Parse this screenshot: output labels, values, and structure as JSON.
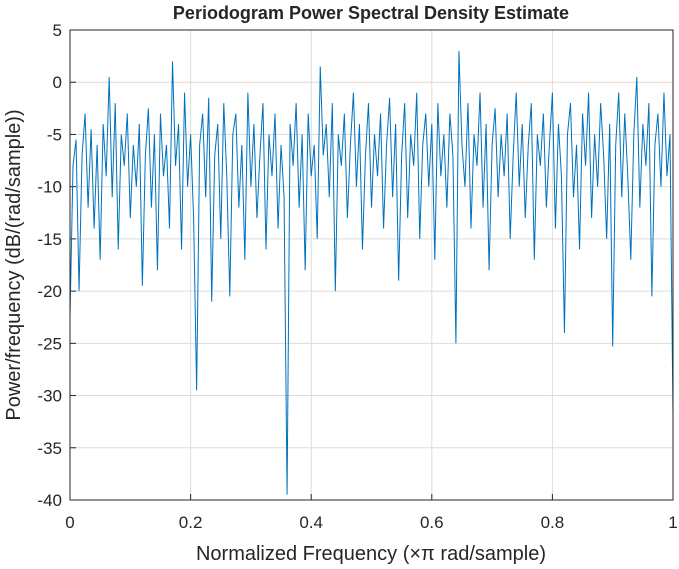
{
  "chart_data": {
    "type": "line",
    "title": "Periodogram Power Spectral Density Estimate",
    "x_label": "Normalized Frequency  (×π rad/sample)",
    "y_label": "Power/frequency (dB/(rad/sample))",
    "xlim": [
      0,
      1
    ],
    "ylim": [
      -40,
      5
    ],
    "xticks": [
      0,
      0.2,
      0.4,
      0.6,
      0.8,
      1
    ],
    "yticks": [
      -40,
      -35,
      -30,
      -25,
      -20,
      -15,
      -10,
      -5,
      0,
      5
    ],
    "grid": true,
    "x": [
      0,
      0.005,
      0.01,
      0.015,
      0.02,
      0.025,
      0.03,
      0.035,
      0.04,
      0.045,
      0.05,
      0.055,
      0.06,
      0.065,
      0.07,
      0.075,
      0.08,
      0.085,
      0.09,
      0.095,
      0.1,
      0.105,
      0.11,
      0.115,
      0.12,
      0.125,
      0.13,
      0.135,
      0.14,
      0.145,
      0.15,
      0.155,
      0.16,
      0.165,
      0.17,
      0.175,
      0.18,
      0.185,
      0.19,
      0.195,
      0.2,
      0.205,
      0.21,
      0.215,
      0.22,
      0.225,
      0.23,
      0.235,
      0.24,
      0.245,
      0.25,
      0.255,
      0.26,
      0.265,
      0.27,
      0.275,
      0.28,
      0.285,
      0.29,
      0.295,
      0.3,
      0.305,
      0.31,
      0.315,
      0.32,
      0.325,
      0.33,
      0.335,
      0.34,
      0.345,
      0.35,
      0.355,
      0.36,
      0.365,
      0.37,
      0.375,
      0.38,
      0.385,
      0.39,
      0.395,
      0.4,
      0.405,
      0.41,
      0.415,
      0.42,
      0.425,
      0.43,
      0.435,
      0.44,
      0.445,
      0.45,
      0.455,
      0.46,
      0.465,
      0.47,
      0.475,
      0.48,
      0.485,
      0.49,
      0.495,
      0.5,
      0.505,
      0.51,
      0.515,
      0.52,
      0.525,
      0.53,
      0.535,
      0.54,
      0.545,
      0.55,
      0.555,
      0.56,
      0.565,
      0.57,
      0.575,
      0.58,
      0.585,
      0.59,
      0.595,
      0.6,
      0.605,
      0.61,
      0.615,
      0.62,
      0.625,
      0.63,
      0.635,
      0.64,
      0.645,
      0.65,
      0.655,
      0.66,
      0.665,
      0.67,
      0.675,
      0.68,
      0.685,
      0.69,
      0.695,
      0.7,
      0.705,
      0.71,
      0.715,
      0.72,
      0.725,
      0.73,
      0.735,
      0.74,
      0.745,
      0.75,
      0.755,
      0.76,
      0.765,
      0.77,
      0.775,
      0.78,
      0.785,
      0.79,
      0.795,
      0.8,
      0.805,
      0.81,
      0.815,
      0.82,
      0.825,
      0.83,
      0.835,
      0.84,
      0.845,
      0.85,
      0.855,
      0.86,
      0.865,
      0.87,
      0.875,
      0.88,
      0.885,
      0.89,
      0.895,
      0.9,
      0.905,
      0.91,
      0.915,
      0.92,
      0.925,
      0.93,
      0.935,
      0.94,
      0.945,
      0.95,
      0.955,
      0.96,
      0.965,
      0.97,
      0.975,
      0.98,
      0.985,
      0.99,
      0.995,
      1
    ],
    "series": [
      {
        "color": "#0072bd",
        "values": [
          -22.5,
          -8,
          -5.5,
          -20,
          -7,
          -3,
          -12,
          -4.5,
          -14,
          -6,
          -17,
          -4,
          -9,
          0.5,
          -11,
          -2,
          -16,
          -5,
          -8,
          -3,
          -13,
          -6,
          -10,
          -4,
          -19.5,
          -7,
          -2.5,
          -12,
          -5,
          -18,
          -3,
          -9,
          -6,
          -14,
          2,
          -8,
          -4,
          -16,
          -1,
          -10,
          -5,
          -13,
          -29.5,
          -6,
          -3,
          -11,
          -1.5,
          -21,
          -7,
          -4,
          -15,
          -2,
          -9,
          -20.5,
          -5,
          -3,
          -12,
          -6,
          -17,
          -1,
          -10,
          -4,
          -13,
          -7,
          -2,
          -16,
          -5,
          -9,
          -3,
          -14,
          -6,
          -11,
          -39.5,
          -4,
          -8,
          -2,
          -12,
          -5,
          -18,
          -3,
          -9,
          -6,
          -15,
          1.5,
          -7,
          -4,
          -11,
          -2,
          -20,
          -5,
          -8,
          -3,
          -13,
          -6,
          -1,
          -10,
          -4,
          -16,
          -7,
          -2,
          -12,
          -5,
          -9,
          -3,
          -14,
          -6,
          -1.5,
          -11,
          -4,
          -19,
          -7,
          -2,
          -13,
          -5,
          -8,
          -1,
          -15,
          -6,
          -3,
          -10,
          -4,
          -17,
          -2,
          -9,
          -5,
          -12,
          -3,
          -7,
          -25,
          3,
          -6,
          -10,
          -2,
          -14,
          -5,
          -8,
          -1,
          -12,
          -4,
          -18,
          -6,
          -2.5,
          -11,
          -5,
          -9,
          -3,
          -15,
          -7,
          -1,
          -10,
          -4,
          -13,
          -6,
          -2,
          -17,
          -5,
          -8,
          -3,
          -12,
          -6,
          -1,
          -14,
          -4,
          -9,
          -24,
          -5,
          -2,
          -11,
          -6,
          -16,
          -3,
          -8,
          -1,
          -13,
          -5,
          -10,
          -2,
          -7,
          -15,
          -4,
          -25.3,
          -6,
          -1,
          -11,
          -3,
          -9,
          -17,
          -5,
          0.5,
          -12,
          -4,
          -8,
          -2,
          -20.5,
          -6,
          -3,
          -10,
          -1,
          -9,
          -5,
          -32
        ]
      }
    ]
  }
}
